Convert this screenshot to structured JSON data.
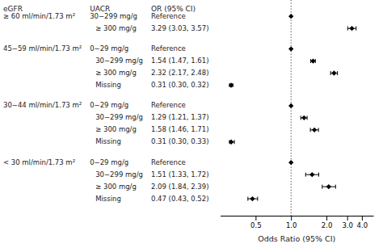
{
  "chart_data": {
    "type": "forest",
    "xlabel": "Odds Ratio (95% CI)",
    "log": "x",
    "xlim": [
      0.25,
      5.0
    ],
    "xticks": [
      0.5,
      {
        "value": 1.0,
        "label": "1.0"
      },
      {
        "value": 2.0,
        "label": "2.0"
      },
      {
        "value": 3.0,
        "label": "3.0"
      },
      {
        "value": 4.0,
        "label": "4.0"
      }
    ],
    "reference_line": 1.0,
    "color": "black",
    "marker": "diamond",
    "columns": [
      "eGFR",
      "UACR",
      "OR (95% CI)"
    ],
    "groups": [
      {
        "label": "≥ 60 ml/min/1.73 m²",
        "rows": [
          {
            "label": "30−299 mg/g",
            "value_label": "Reference",
            "value": 1.0,
            "lo": null,
            "hi": null
          },
          {
            "label": "≥ 300 mg/g",
            "value_label": "3.29 (3.03, 3.57)",
            "value": 3.29,
            "lo": 3.03,
            "hi": 3.57
          }
        ]
      },
      {
        "label": "45−59 ml/min/1.73 m²",
        "rows": [
          {
            "label": "0−29 mg/g",
            "value_label": "Reference",
            "value": 1.0,
            "lo": null,
            "hi": null
          },
          {
            "label": "30−299 mg/g",
            "value_label": "1.54 (1.47, 1.61)",
            "value": 1.54,
            "lo": 1.47,
            "hi": 1.61
          },
          {
            "label": "≥ 300 mg/g",
            "value_label": "2.32 (2.17, 2.48)",
            "value": 2.32,
            "lo": 2.17,
            "hi": 2.48
          },
          {
            "label": "Missing",
            "value_label": "0.31 (0.30, 0.32)",
            "value": 0.31,
            "lo": 0.3,
            "hi": 0.32
          }
        ]
      },
      {
        "label": "30−44 ml/min/1.73 m²",
        "rows": [
          {
            "label": "0−29 mg/g",
            "value_label": "Reference",
            "value": 1.0,
            "lo": null,
            "hi": null
          },
          {
            "label": "30−299 mg/g",
            "value_label": "1.29 (1.21, 1.37)",
            "value": 1.29,
            "lo": 1.21,
            "hi": 1.37
          },
          {
            "label": "≥ 300 mg/g",
            "value_label": "1.58 (1.46, 1.71)",
            "value": 1.58,
            "lo": 1.46,
            "hi": 1.71
          },
          {
            "label": "Missing",
            "value_label": "0.31 (0.30, 0.33)",
            "value": 0.31,
            "lo": 0.3,
            "hi": 0.33
          }
        ]
      },
      {
        "label": "< 30 ml/min/1.73 m²",
        "rows": [
          {
            "label": "0−29 mg/g",
            "value_label": "Reference",
            "value": 1.0,
            "lo": null,
            "hi": null
          },
          {
            "label": "30−299 mg/g",
            "value_label": "1.51 (1.33, 1.72)",
            "value": 1.51,
            "lo": 1.33,
            "hi": 1.72
          },
          {
            "label": "≥ 300 mg/g",
            "value_label": "2.09 (1.84, 2.39)",
            "value": 2.09,
            "lo": 1.84,
            "hi": 2.39
          },
          {
            "label": "Missing",
            "value_label": "0.47 (0.43, 0.52)",
            "value": 0.47,
            "lo": 0.43,
            "hi": 0.52
          }
        ]
      }
    ]
  }
}
